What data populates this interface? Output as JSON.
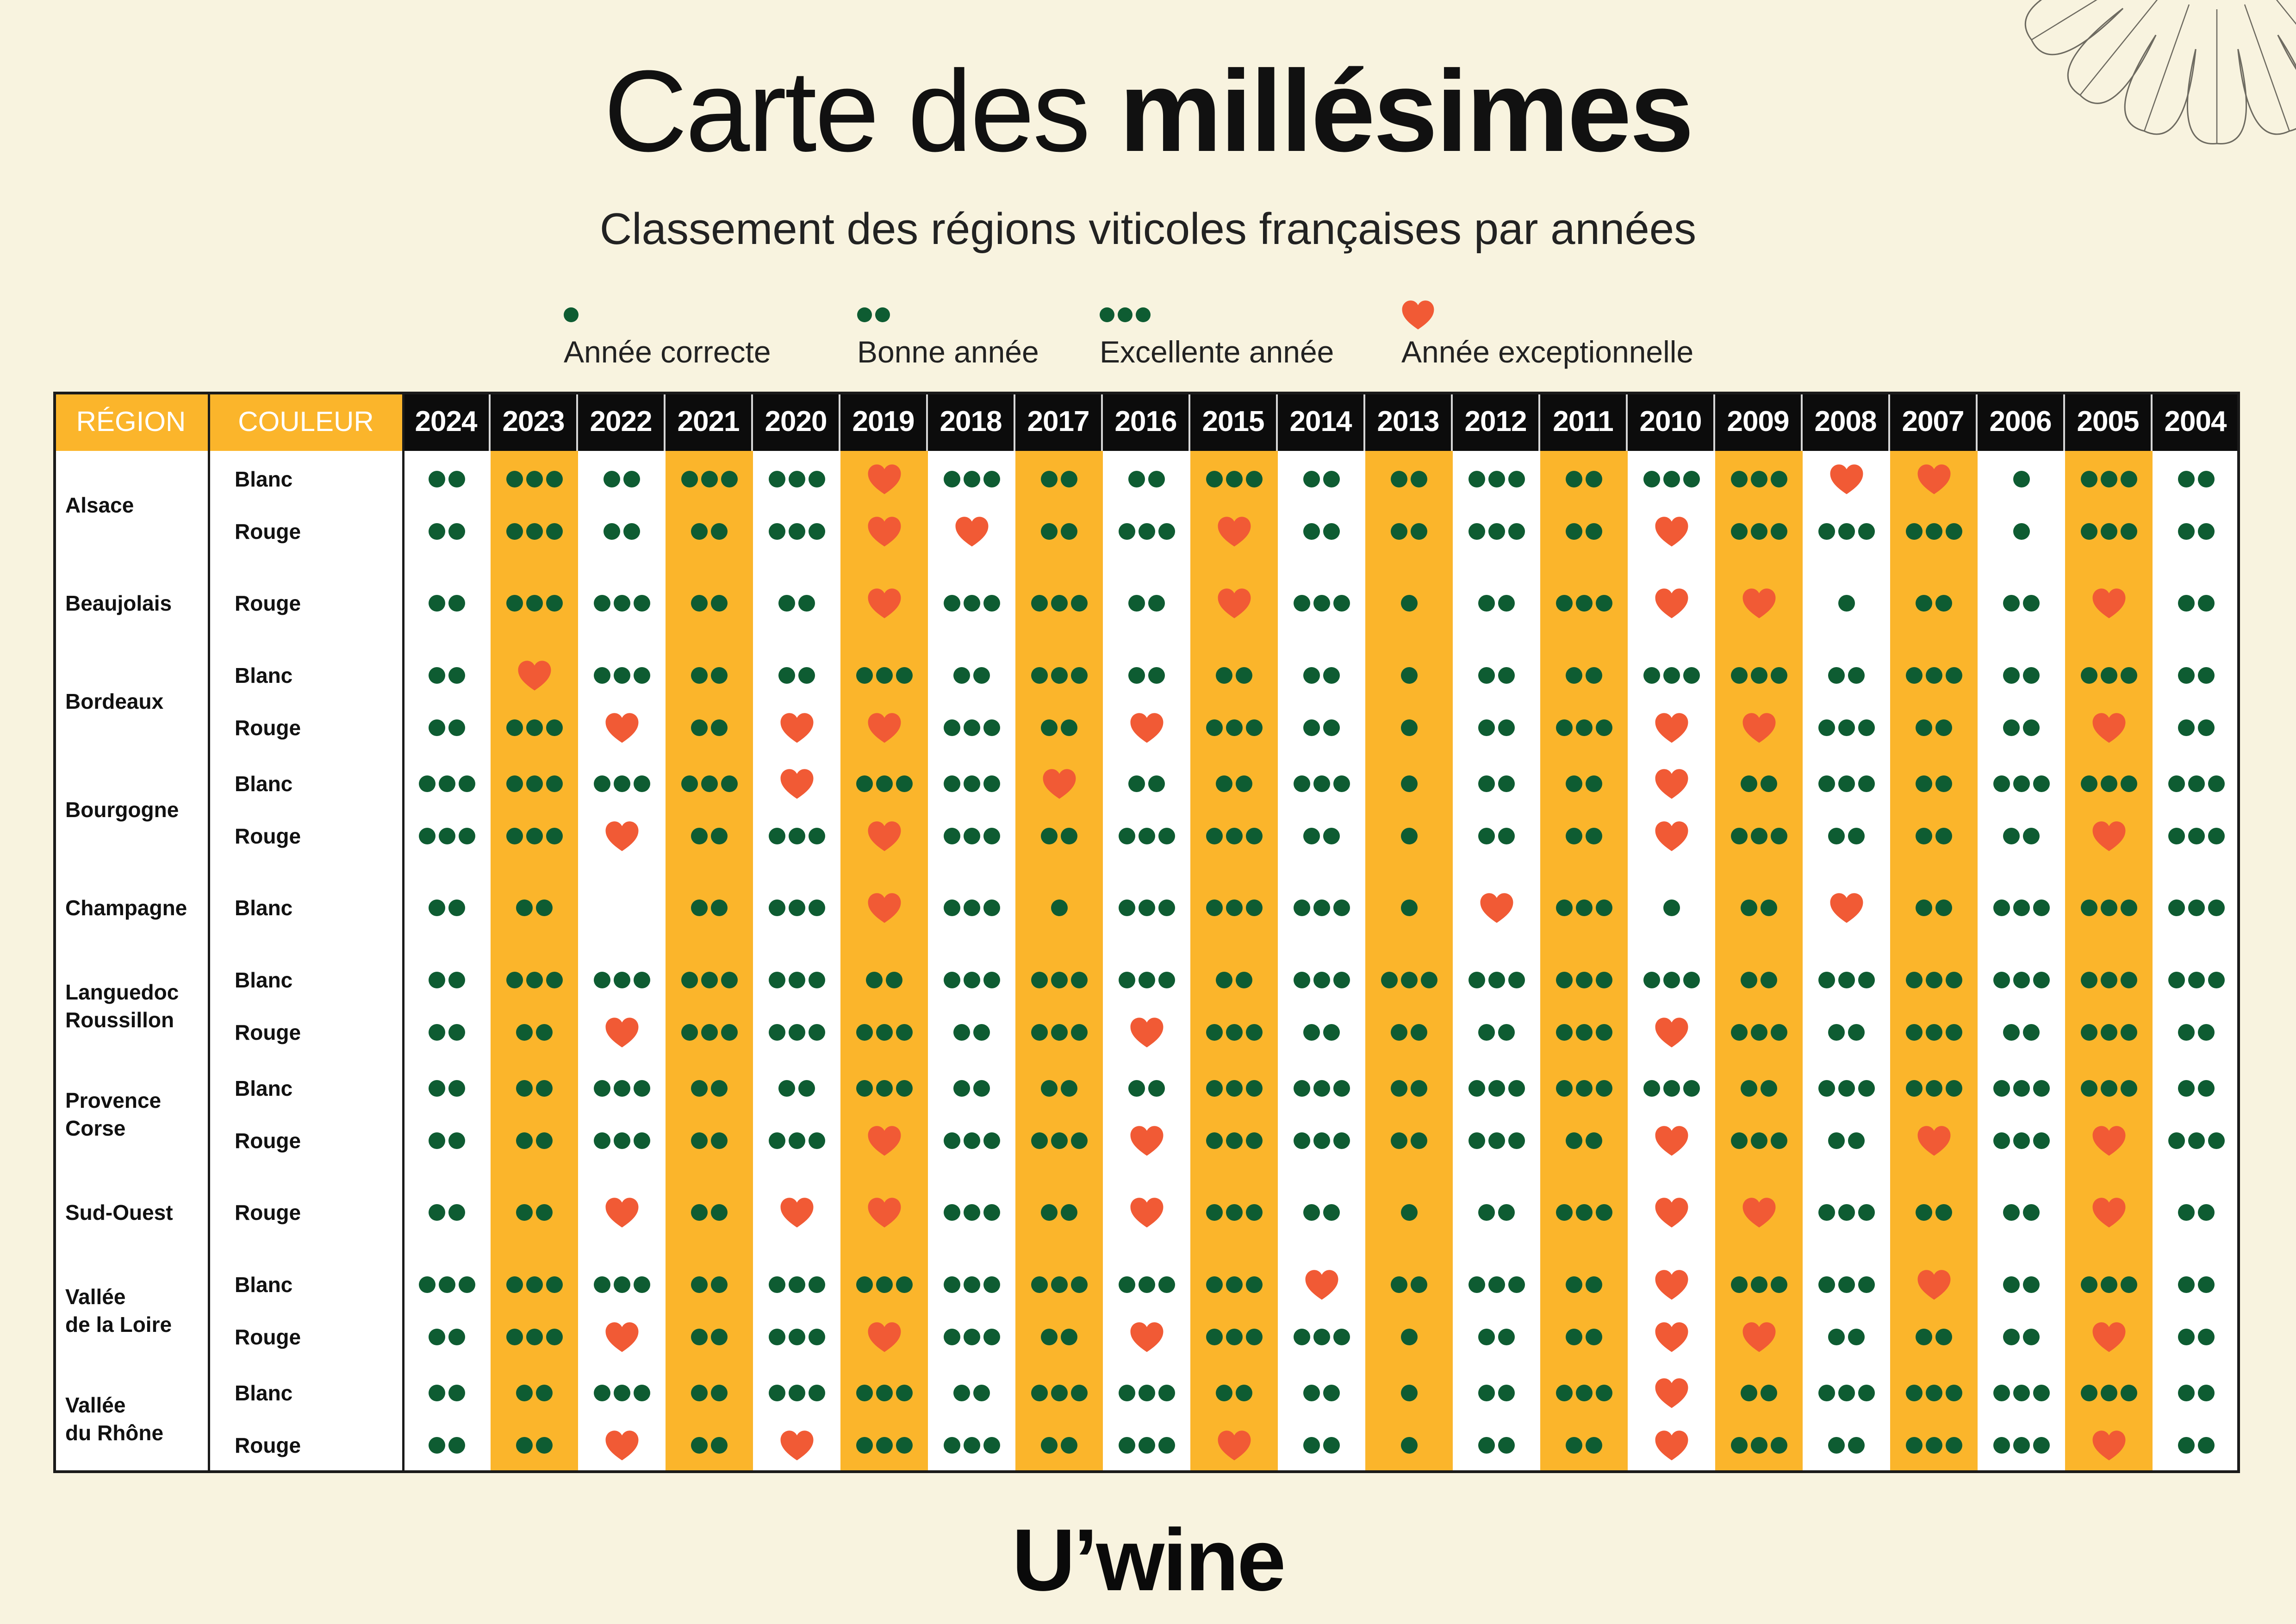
{
  "title": {
    "light": "Carte des ",
    "bold": "millésimes"
  },
  "subtitle": "Classement des régions viticoles françaises par années",
  "colors": {
    "background": "#f8f3df",
    "orange": "#fbb52b",
    "green": "#0e5c32",
    "heart": "#f15a35",
    "header_dark": "#0c0c0c"
  },
  "legend": [
    {
      "symbol": "1",
      "label": "Année correcte"
    },
    {
      "symbol": "2",
      "label": "Bonne année"
    },
    {
      "symbol": "3",
      "label": "Excellente année"
    },
    {
      "symbol": "H",
      "label": "Année exceptionnelle"
    }
  ],
  "table": {
    "region_header": "RÉGION",
    "color_header": "COULEUR",
    "years": [
      "2024",
      "2023",
      "2022",
      "2021",
      "2020",
      "2019",
      "2018",
      "2017",
      "2016",
      "2015",
      "2014",
      "2013",
      "2012",
      "2011",
      "2010",
      "2009",
      "2008",
      "2007",
      "2006",
      "2005",
      "2004"
    ],
    "highlighted_year_columns": [
      "2023",
      "2021",
      "2019",
      "2017",
      "2015",
      "2013",
      "2011",
      "2009",
      "2007",
      "2005"
    ],
    "regions": [
      {
        "name": "Alsace",
        "rows": [
          {
            "color": "Blanc",
            "ratings": [
              "2",
              "3",
              "2",
              "3",
              "3",
              "H",
              "3",
              "2",
              "2",
              "3",
              "2",
              "2",
              "3",
              "2",
              "3",
              "3",
              "H",
              "H",
              "1",
              "3",
              "2"
            ]
          },
          {
            "color": "Rouge",
            "ratings": [
              "2",
              "3",
              "2",
              "2",
              "3",
              "H",
              "H",
              "2",
              "3",
              "H",
              "2",
              "2",
              "3",
              "2",
              "H",
              "3",
              "3",
              "3",
              "1",
              "3",
              "2"
            ]
          }
        ]
      },
      {
        "name": "Beaujolais",
        "rows": [
          {
            "color": "Rouge",
            "ratings": [
              "2",
              "3",
              "3",
              "2",
              "2",
              "H",
              "3",
              "3",
              "2",
              "H",
              "3",
              "1",
              "2",
              "3",
              "H",
              "H",
              "1",
              "2",
              "2",
              "H",
              "2"
            ]
          }
        ]
      },
      {
        "name": "Bordeaux",
        "rows": [
          {
            "color": "Blanc",
            "ratings": [
              "2",
              "H",
              "3",
              "2",
              "2",
              "3",
              "2",
              "3",
              "2",
              "2",
              "2",
              "1",
              "2",
              "2",
              "3",
              "3",
              "2",
              "3",
              "2",
              "3",
              "2"
            ]
          },
          {
            "color": "Rouge",
            "ratings": [
              "2",
              "3",
              "H",
              "2",
              "H",
              "H",
              "3",
              "2",
              "H",
              "3",
              "2",
              "1",
              "2",
              "3",
              "H",
              "H",
              "3",
              "2",
              "2",
              "H",
              "2"
            ]
          }
        ]
      },
      {
        "name": "Bourgogne",
        "rows": [
          {
            "color": "Blanc",
            "ratings": [
              "3",
              "3",
              "3",
              "3",
              "H",
              "3",
              "3",
              "H",
              "2",
              "2",
              "3",
              "1",
              "2",
              "2",
              "H",
              "2",
              "3",
              "2",
              "3",
              "3",
              "3"
            ]
          },
          {
            "color": "Rouge",
            "ratings": [
              "3",
              "3",
              "H",
              "2",
              "3",
              "H",
              "3",
              "2",
              "3",
              "3",
              "2",
              "1",
              "2",
              "2",
              "H",
              "3",
              "2",
              "2",
              "2",
              "H",
              "3"
            ]
          }
        ]
      },
      {
        "name": "Champagne",
        "rows": [
          {
            "color": "Blanc",
            "ratings": [
              "2",
              "2",
              "",
              "2",
              "3",
              "H",
              "3",
              "1",
              "3",
              "3",
              "3",
              "1",
              "H",
              "3",
              "1",
              "2",
              "H",
              "2",
              "3",
              "3",
              "3"
            ]
          }
        ]
      },
      {
        "name": "Languedoc\nRoussillon",
        "rows": [
          {
            "color": "Blanc",
            "ratings": [
              "2",
              "3",
              "3",
              "3",
              "3",
              "2",
              "3",
              "3",
              "3",
              "2",
              "3",
              "3",
              "3",
              "3",
              "3",
              "2",
              "3",
              "3",
              "3",
              "3",
              "3"
            ]
          },
          {
            "color": "Rouge",
            "ratings": [
              "2",
              "2",
              "H",
              "3",
              "3",
              "3",
              "2",
              "3",
              "H",
              "3",
              "2",
              "2",
              "2",
              "3",
              "H",
              "3",
              "2",
              "3",
              "2",
              "3",
              "2"
            ]
          }
        ]
      },
      {
        "name": "Provence\nCorse",
        "rows": [
          {
            "color": "Blanc",
            "ratings": [
              "2",
              "2",
              "3",
              "2",
              "2",
              "3",
              "2",
              "2",
              "2",
              "3",
              "3",
              "2",
              "3",
              "3",
              "3",
              "2",
              "3",
              "3",
              "3",
              "3",
              "2"
            ]
          },
          {
            "color": "Rouge",
            "ratings": [
              "2",
              "2",
              "3",
              "2",
              "3",
              "H",
              "3",
              "3",
              "H",
              "3",
              "3",
              "2",
              "3",
              "2",
              "H",
              "3",
              "2",
              "H",
              "3",
              "H",
              "3"
            ]
          }
        ]
      },
      {
        "name": "Sud-Ouest",
        "rows": [
          {
            "color": "Rouge",
            "ratings": [
              "2",
              "2",
              "H",
              "2",
              "H",
              "H",
              "3",
              "2",
              "H",
              "3",
              "2",
              "1",
              "2",
              "3",
              "H",
              "H",
              "3",
              "2",
              "2",
              "H",
              "2"
            ]
          }
        ]
      },
      {
        "name": "Vallée\nde la Loire",
        "rows": [
          {
            "color": "Blanc",
            "ratings": [
              "3",
              "3",
              "3",
              "2",
              "3",
              "3",
              "3",
              "3",
              "3",
              "3",
              "H",
              "2",
              "3",
              "2",
              "H",
              "3",
              "3",
              "H",
              "2",
              "3",
              "2"
            ]
          },
          {
            "color": "Rouge",
            "ratings": [
              "2",
              "3",
              "H",
              "2",
              "3",
              "H",
              "3",
              "2",
              "H",
              "3",
              "3",
              "1",
              "2",
              "2",
              "H",
              "H",
              "2",
              "2",
              "2",
              "H",
              "2"
            ]
          }
        ]
      },
      {
        "name": "Vallée\ndu Rhône",
        "rows": [
          {
            "color": "Blanc",
            "ratings": [
              "2",
              "2",
              "3",
              "2",
              "3",
              "3",
              "2",
              "3",
              "3",
              "2",
              "2",
              "1",
              "2",
              "3",
              "H",
              "2",
              "3",
              "3",
              "3",
              "3",
              "2"
            ]
          },
          {
            "color": "Rouge",
            "ratings": [
              "2",
              "2",
              "H",
              "2",
              "H",
              "3",
              "3",
              "2",
              "3",
              "H",
              "2",
              "1",
              "2",
              "2",
              "H",
              "3",
              "2",
              "3",
              "3",
              "H",
              "2"
            ]
          }
        ]
      }
    ]
  },
  "logo": "U’wine"
}
